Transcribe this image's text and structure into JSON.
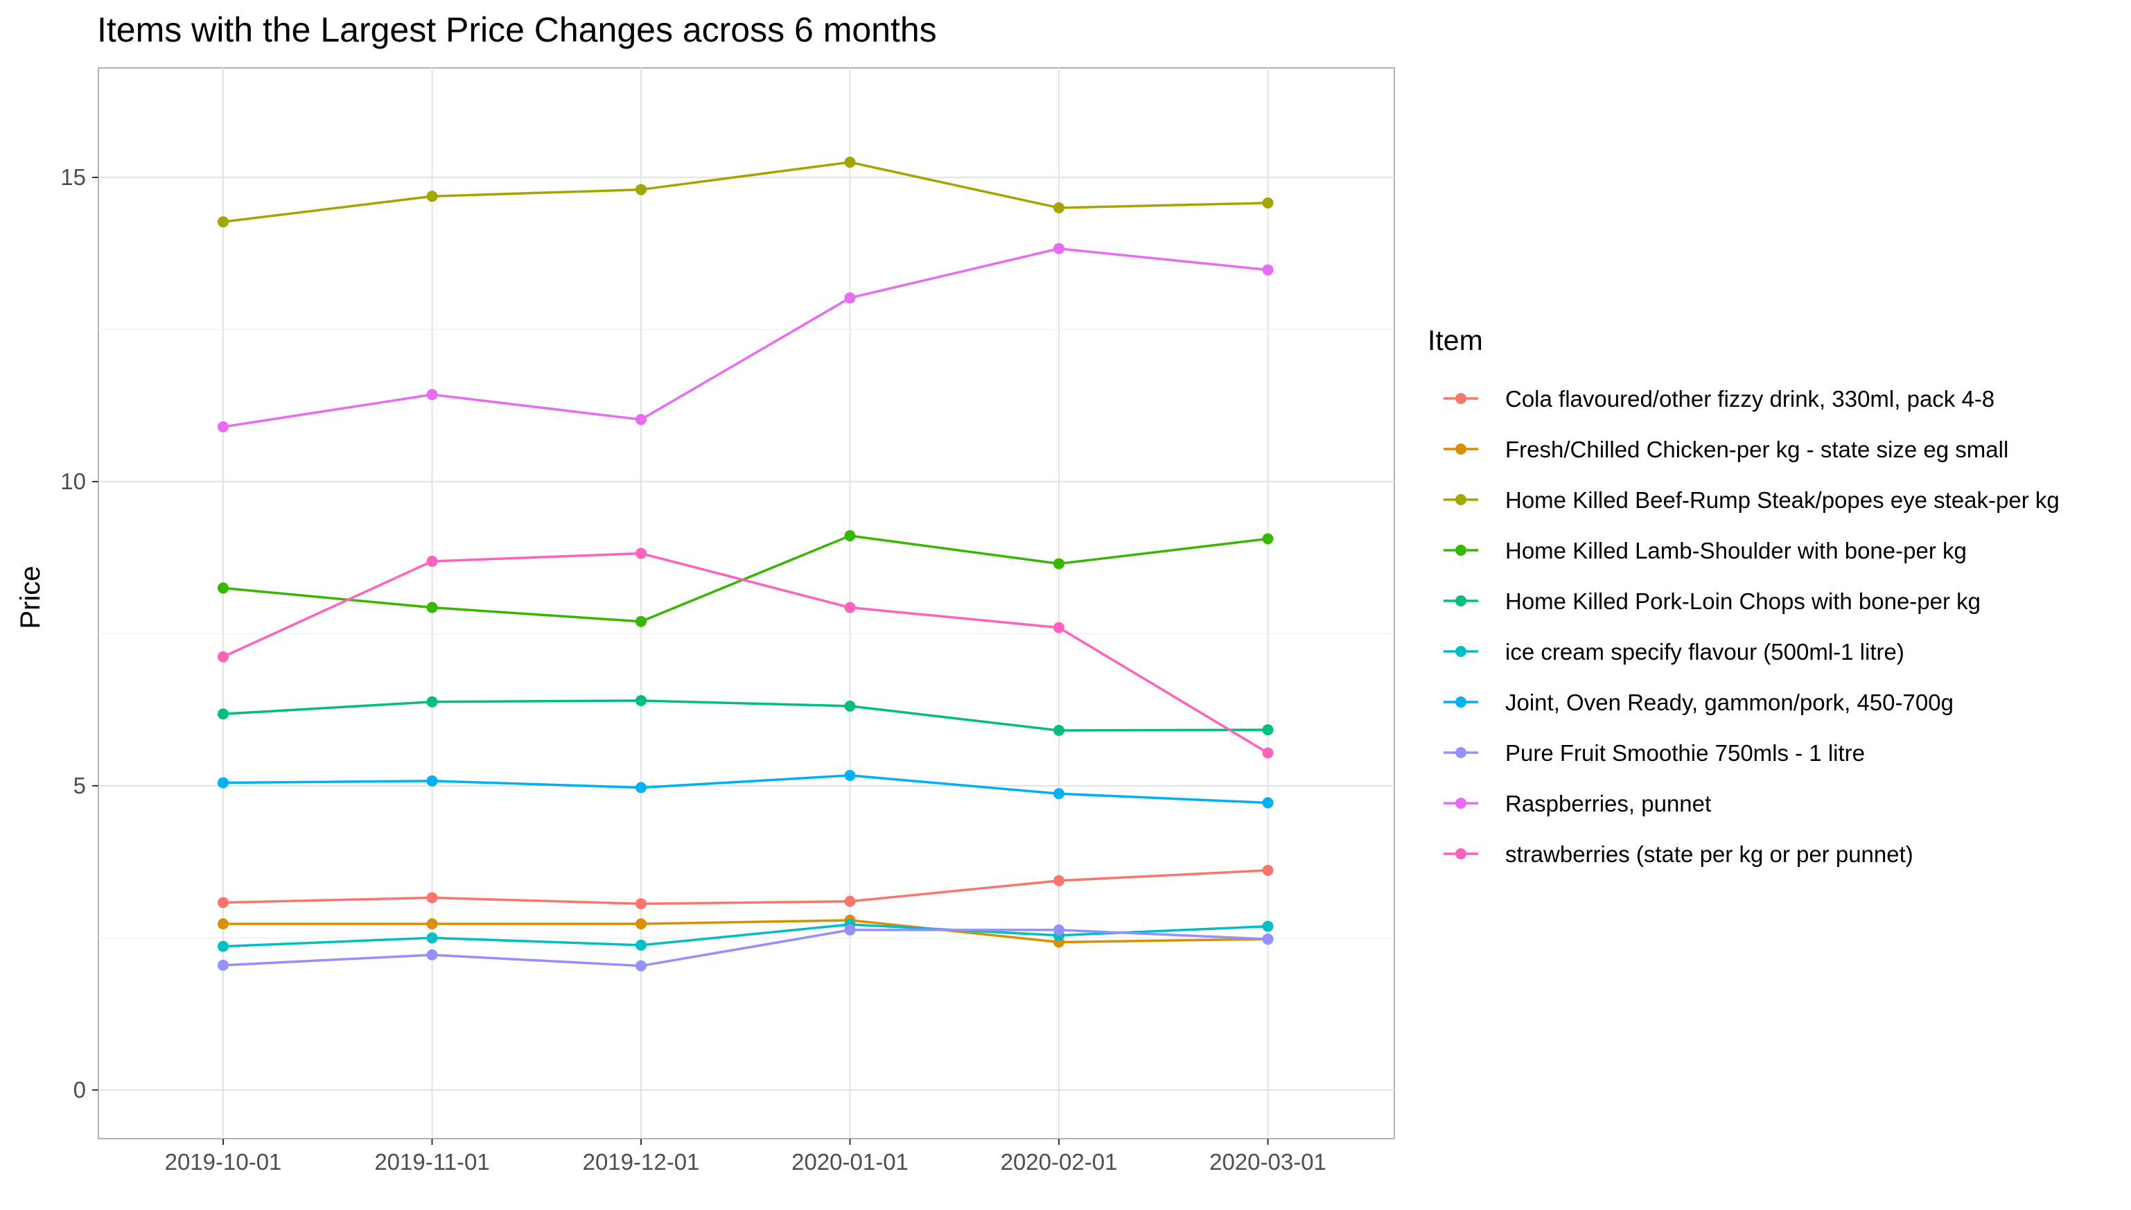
{
  "chart_data": {
    "type": "line",
    "title": "Items with the Largest Price Changes across 6 months",
    "xlabel": "",
    "ylabel": "Price",
    "x": [
      "2019-10-01",
      "2019-11-01",
      "2019-12-01",
      "2020-01-01",
      "2020-02-01",
      "2020-03-01"
    ],
    "ylim": [
      -0.8,
      16.8
    ],
    "yticks": [
      0,
      5,
      10,
      15
    ],
    "grid": true,
    "legend": {
      "title": "Item",
      "position": "right"
    },
    "series": [
      {
        "name": "Cola flavoured/other fizzy drink, 330ml, pack 4-8",
        "color": "#F8766D",
        "values": [
          3.08,
          3.16,
          3.06,
          3.1,
          3.44,
          3.61
        ]
      },
      {
        "name": "Fresh/Chilled Chicken-per kg - state size eg small",
        "color": "#D89000",
        "values": [
          2.73,
          2.73,
          2.73,
          2.79,
          2.43,
          2.48
        ]
      },
      {
        "name": "Home Killed Beef-Rump Steak/popes eye steak-per kg",
        "color": "#A3A500",
        "values": [
          14.27,
          14.69,
          14.8,
          15.25,
          14.5,
          14.58
        ]
      },
      {
        "name": "Home Killed Lamb-Shoulder with bone-per kg",
        "color": "#39B600",
        "values": [
          8.25,
          7.93,
          7.7,
          9.11,
          8.65,
          9.06
        ]
      },
      {
        "name": "Home Killed Pork-Loin Chops with bone-per kg",
        "color": "#00BF7D",
        "values": [
          6.18,
          6.38,
          6.4,
          6.31,
          5.91,
          5.92
        ]
      },
      {
        "name": "ice cream specify flavour (500ml-1 litre)",
        "color": "#00BFC4",
        "values": [
          2.36,
          2.5,
          2.38,
          2.72,
          2.54,
          2.69
        ]
      },
      {
        "name": "Joint, Oven Ready, gammon/pork, 450-700g",
        "color": "#00B0F6",
        "values": [
          5.05,
          5.08,
          4.97,
          5.17,
          4.87,
          4.72
        ]
      },
      {
        "name": "Pure Fruit Smoothie 750mls - 1 litre",
        "color": "#9590FF",
        "values": [
          2.05,
          2.22,
          2.04,
          2.63,
          2.63,
          2.48
        ]
      },
      {
        "name": "Raspberries, punnet",
        "color": "#E76BF3",
        "values": [
          10.9,
          11.43,
          11.02,
          13.02,
          13.83,
          13.48
        ]
      },
      {
        "name": "strawberries (state per kg or per punnet)",
        "color": "#FF62BC",
        "values": [
          7.12,
          8.69,
          8.82,
          7.93,
          7.6,
          5.54
        ]
      }
    ]
  }
}
